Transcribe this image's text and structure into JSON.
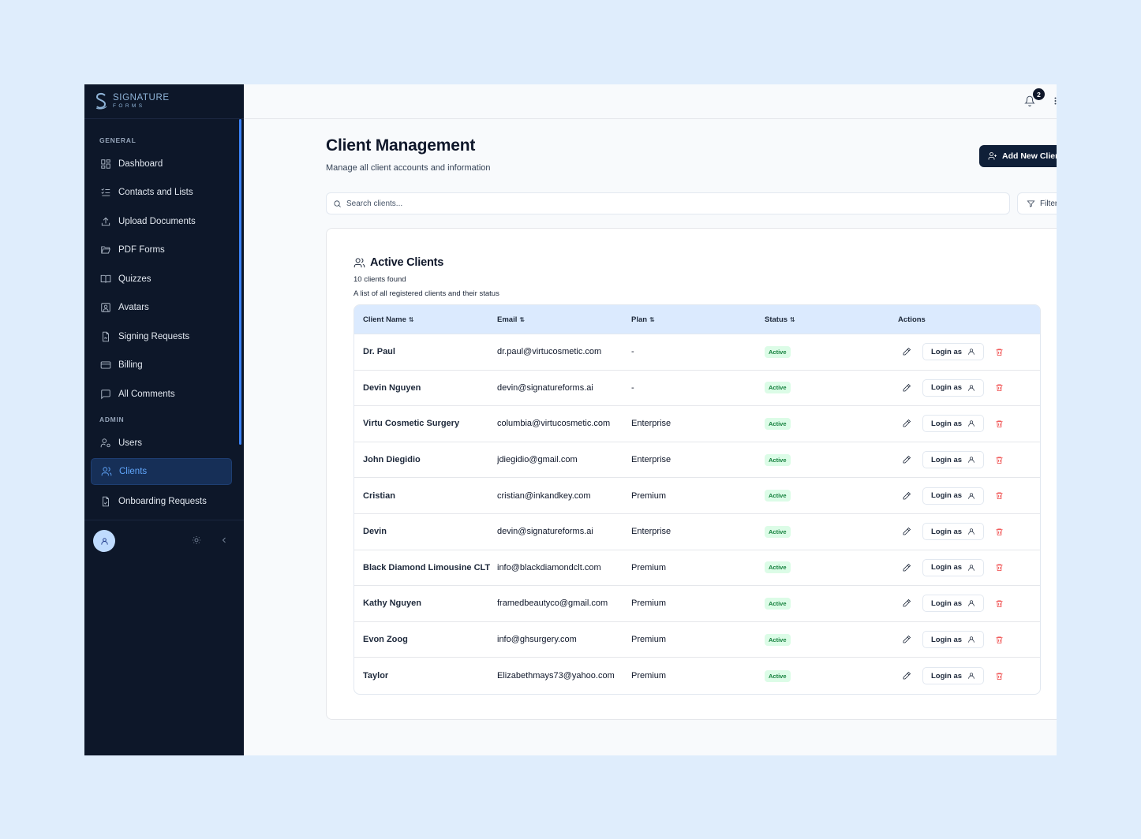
{
  "brand": {
    "name": "SIGNATURE",
    "sub": "FORMS"
  },
  "sidebar": {
    "general_label": "GENERAL",
    "admin_label": "ADMIN",
    "general_items": [
      {
        "label": "Dashboard",
        "icon": "dashboard-icon"
      },
      {
        "label": "Contacts and Lists",
        "icon": "list-check-icon"
      },
      {
        "label": "Upload Documents",
        "icon": "upload-icon"
      },
      {
        "label": "PDF Forms",
        "icon": "folder-open-icon"
      },
      {
        "label": "Quizzes",
        "icon": "book-open-icon"
      },
      {
        "label": "Avatars",
        "icon": "user-square-icon"
      },
      {
        "label": "Signing Requests",
        "icon": "file-signature-icon"
      },
      {
        "label": "Billing",
        "icon": "credit-card-icon"
      },
      {
        "label": "All Comments",
        "icon": "message-square-icon"
      }
    ],
    "admin_items": [
      {
        "label": "Users",
        "icon": "user-cog-icon"
      },
      {
        "label": "Clients",
        "icon": "users-icon",
        "active": true
      },
      {
        "label": "Onboarding Requests",
        "icon": "file-check-icon"
      }
    ]
  },
  "topbar": {
    "notification_count": "2"
  },
  "page": {
    "title": "Client Management",
    "subtitle": "Manage all client accounts and information",
    "add_button": "Add New Client",
    "search_placeholder": "Search clients...",
    "filter_button": "Filter"
  },
  "card": {
    "title": "Active Clients",
    "count": "10 clients found",
    "description": "A list of all registered clients and their status"
  },
  "table": {
    "columns": [
      "Client Name",
      "Email",
      "Plan",
      "Status",
      "Actions"
    ],
    "sortable": [
      true,
      true,
      true,
      true,
      false
    ],
    "login_label": "Login as",
    "rows": [
      {
        "name": "Dr. Paul",
        "email": "dr.paul@virtucosmetic.com",
        "plan": "-",
        "status": "Active"
      },
      {
        "name": "Devin Nguyen",
        "email": "devin@signatureforms.ai",
        "plan": "-",
        "status": "Active"
      },
      {
        "name": "Virtu Cosmetic Surgery",
        "email": "columbia@virtucosmetic.com",
        "plan": "Enterprise",
        "status": "Active"
      },
      {
        "name": "John Diegidio",
        "email": "jdiegidio@gmail.com",
        "plan": "Enterprise",
        "status": "Active"
      },
      {
        "name": "Cristian",
        "email": "cristian@inkandkey.com",
        "plan": "Premium",
        "status": "Active"
      },
      {
        "name": "Devin",
        "email": "devin@signatureforms.ai",
        "plan": "Enterprise",
        "status": "Active"
      },
      {
        "name": "Black Diamond Limousine CLT",
        "email": "info@blackdiamondclt.com",
        "plan": "Premium",
        "status": "Active"
      },
      {
        "name": "Kathy Nguyen",
        "email": "framedbeautyco@gmail.com",
        "plan": "Premium",
        "status": "Active"
      },
      {
        "name": "Evon Zoog",
        "email": "info@ghsurgery.com",
        "plan": "Premium",
        "status": "Active"
      },
      {
        "name": "Taylor",
        "email": "Elizabethmays73@yahoo.com",
        "plan": "Premium",
        "status": "Active"
      }
    ]
  },
  "colors": {
    "sidebar_bg": "#0d1729",
    "accent": "#3b82f6",
    "primary_button": "#0f1f38",
    "active_badge": "#dcfce7",
    "danger": "#ef4444",
    "table_header": "#dbeafe",
    "page_bg": "#dfedfc"
  }
}
